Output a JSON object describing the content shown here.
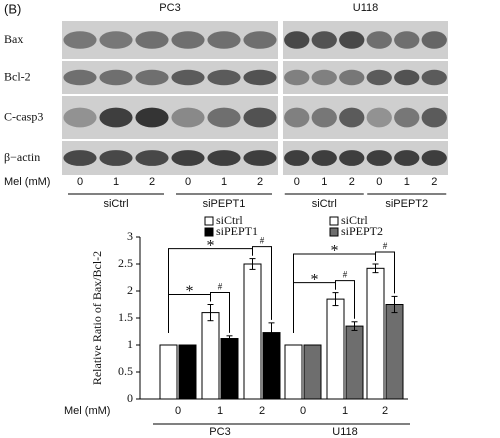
{
  "panel_label": "(B)",
  "blot": {
    "cell_lines": [
      "PC3",
      "U118"
    ],
    "proteins": [
      "Bax",
      "Bcl-2",
      "C-casp3",
      "β−actin"
    ],
    "dose_label": "Mel (mM)",
    "doses": [
      "0",
      "1",
      "2",
      "0",
      "1",
      "2",
      "0",
      "1",
      "2",
      "0",
      "1",
      "2"
    ],
    "groups": [
      "siCtrl",
      "siPEPT1",
      "siCtrl",
      "siPEPT2"
    ]
  },
  "chart_data": {
    "type": "bar",
    "ylabel": "Relative Ratio of Bax/Bcl-2",
    "xlabel": "Mel (mM)",
    "ylim": [
      0,
      3
    ],
    "yticks": [
      0,
      0.5,
      1,
      1.5,
      2,
      2.5,
      3
    ],
    "groups": [
      {
        "name": "PC3",
        "categories": [
          "0",
          "1",
          "2"
        ],
        "annotations": {
          "vs_control": [
            "*",
            "*"
          ],
          "vs_sirna": [
            "#",
            "#"
          ]
        },
        "series": [
          {
            "name": "siCtrl",
            "color": "#ffffff",
            "values": [
              1,
              1.6,
              2.5
            ],
            "errors": [
              0,
              0.15,
              0.1
            ]
          },
          {
            "name": "siPEPT1",
            "color": "#000000",
            "values": [
              1,
              1.12,
              1.23
            ],
            "errors": [
              0,
              0.05,
              0.18
            ]
          }
        ]
      },
      {
        "name": "U118",
        "categories": [
          "0",
          "1",
          "2"
        ],
        "annotations": {
          "vs_control": [
            "*",
            "*"
          ],
          "vs_sirna": [
            "#",
            "#"
          ]
        },
        "series": [
          {
            "name": "siCtrl",
            "color": "#ffffff",
            "values": [
              1,
              1.85,
              2.42
            ],
            "errors": [
              0,
              0.12,
              0.08
            ]
          },
          {
            "name": "siPEPT2",
            "color": "#6e6e6e",
            "values": [
              1,
              1.35,
              1.75
            ],
            "errors": [
              0,
              0.08,
              0.15
            ]
          }
        ]
      }
    ]
  }
}
